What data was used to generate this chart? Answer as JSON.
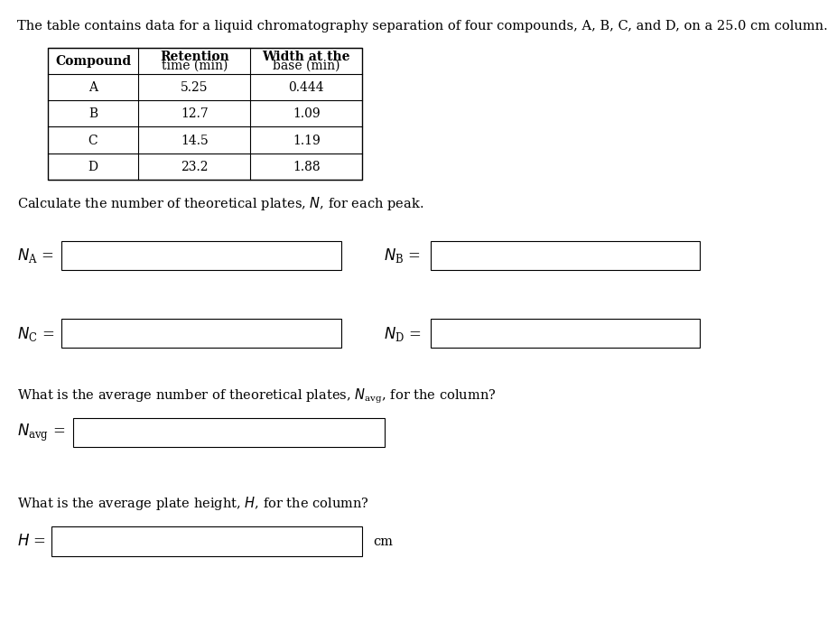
{
  "title": "The table contains data for a liquid chromatography separation of four compounds, A, B, C, and D, on a 25.0 cm column.",
  "table_data": [
    [
      "A",
      "5.25",
      "0.444"
    ],
    [
      "B",
      "12.7",
      "1.09"
    ],
    [
      "C",
      "14.5",
      "1.19"
    ],
    [
      "D",
      "23.2",
      "1.88"
    ]
  ],
  "bg_color": "#ffffff",
  "text_color": "#000000",
  "box_color": "#ffffff",
  "box_edge_color": "#000000"
}
